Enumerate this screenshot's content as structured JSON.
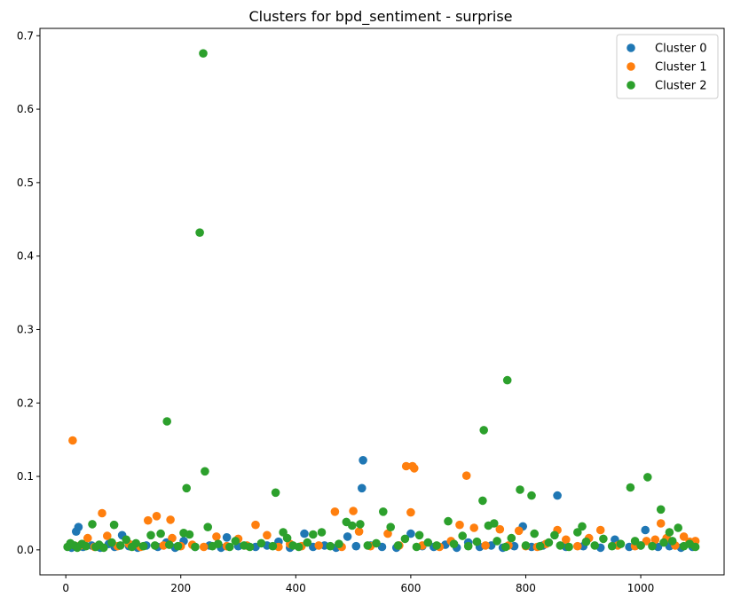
{
  "chart_data": {
    "type": "scatter",
    "title": "Clusters for bpd_sentiment - surprise",
    "xlabel": "",
    "ylabel": "",
    "xlim": [
      -45,
      1145
    ],
    "ylim": [
      -0.034,
      0.71
    ],
    "xticks": [
      0,
      200,
      400,
      600,
      800,
      1000
    ],
    "yticks": [
      0.0,
      0.1,
      0.2,
      0.3,
      0.4,
      0.5,
      0.6,
      0.7
    ],
    "ytick_labels": [
      "0.0",
      "0.1",
      "0.2",
      "0.3",
      "0.4",
      "0.5",
      "0.6",
      "0.7"
    ],
    "grid": false,
    "legend_position": "top-right",
    "series": [
      {
        "name": "Cluster 0",
        "color": "#1f77b4",
        "points": [
          [
            10,
            0.003
          ],
          [
            18,
            0.025
          ],
          [
            22,
            0.031
          ],
          [
            30,
            0.004
          ],
          [
            45,
            0.006
          ],
          [
            60,
            0.003
          ],
          [
            75,
            0.008
          ],
          [
            85,
            0.004
          ],
          [
            98,
            0.02
          ],
          [
            110,
            0.005
          ],
          [
            125,
            0.003
          ],
          [
            140,
            0.006
          ],
          [
            160,
            0.004
          ],
          [
            175,
            0.01
          ],
          [
            190,
            0.003
          ],
          [
            205,
            0.012
          ],
          [
            225,
            0.004
          ],
          [
            250,
            0.006
          ],
          [
            270,
            0.003
          ],
          [
            280,
            0.017
          ],
          [
            300,
            0.005
          ],
          [
            330,
            0.004
          ],
          [
            350,
            0.006
          ],
          [
            370,
            0.011
          ],
          [
            390,
            0.003
          ],
          [
            415,
            0.022
          ],
          [
            430,
            0.004
          ],
          [
            450,
            0.006
          ],
          [
            470,
            0.003
          ],
          [
            490,
            0.018
          ],
          [
            505,
            0.005
          ],
          [
            515,
            0.084
          ],
          [
            517,
            0.122
          ],
          [
            530,
            0.006
          ],
          [
            550,
            0.004
          ],
          [
            575,
            0.003
          ],
          [
            600,
            0.022
          ],
          [
            620,
            0.005
          ],
          [
            640,
            0.004
          ],
          [
            660,
            0.007
          ],
          [
            680,
            0.003
          ],
          [
            700,
            0.01
          ],
          [
            720,
            0.004
          ],
          [
            740,
            0.006
          ],
          [
            760,
            0.003
          ],
          [
            780,
            0.005
          ],
          [
            795,
            0.032
          ],
          [
            810,
            0.004
          ],
          [
            830,
            0.006
          ],
          [
            855,
            0.074
          ],
          [
            870,
            0.004
          ],
          [
            900,
            0.005
          ],
          [
            930,
            0.003
          ],
          [
            955,
            0.014
          ],
          [
            980,
            0.004
          ],
          [
            1000,
            0.006
          ],
          [
            1008,
            0.027
          ],
          [
            1030,
            0.004
          ],
          [
            1050,
            0.005
          ],
          [
            1070,
            0.003
          ],
          [
            1090,
            0.004
          ]
        ]
      },
      {
        "name": "Cluster 1",
        "color": "#ff7f0e",
        "points": [
          [
            12,
            0.149
          ],
          [
            25,
            0.006
          ],
          [
            38,
            0.016
          ],
          [
            50,
            0.004
          ],
          [
            63,
            0.05
          ],
          [
            72,
            0.019
          ],
          [
            90,
            0.005
          ],
          [
            110,
            0.008
          ],
          [
            130,
            0.004
          ],
          [
            143,
            0.04
          ],
          [
            158,
            0.046
          ],
          [
            170,
            0.006
          ],
          [
            182,
            0.041
          ],
          [
            185,
            0.016
          ],
          [
            200,
            0.005
          ],
          [
            220,
            0.007
          ],
          [
            240,
            0.004
          ],
          [
            262,
            0.018
          ],
          [
            280,
            0.005
          ],
          [
            300,
            0.015
          ],
          [
            315,
            0.006
          ],
          [
            330,
            0.034
          ],
          [
            350,
            0.02
          ],
          [
            370,
            0.004
          ],
          [
            390,
            0.008
          ],
          [
            410,
            0.005
          ],
          [
            440,
            0.006
          ],
          [
            468,
            0.052
          ],
          [
            480,
            0.004
          ],
          [
            500,
            0.053
          ],
          [
            510,
            0.025
          ],
          [
            530,
            0.005
          ],
          [
            560,
            0.022
          ],
          [
            580,
            0.006
          ],
          [
            592,
            0.114
          ],
          [
            600,
            0.051
          ],
          [
            603,
            0.114
          ],
          [
            606,
            0.111
          ],
          [
            620,
            0.006
          ],
          [
            650,
            0.004
          ],
          [
            670,
            0.012
          ],
          [
            685,
            0.034
          ],
          [
            697,
            0.101
          ],
          [
            710,
            0.03
          ],
          [
            730,
            0.006
          ],
          [
            755,
            0.028
          ],
          [
            770,
            0.006
          ],
          [
            788,
            0.026
          ],
          [
            800,
            0.005
          ],
          [
            820,
            0.004
          ],
          [
            835,
            0.008
          ],
          [
            855,
            0.027
          ],
          [
            870,
            0.014
          ],
          [
            890,
            0.005
          ],
          [
            910,
            0.016
          ],
          [
            930,
            0.027
          ],
          [
            960,
            0.006
          ],
          [
            990,
            0.005
          ],
          [
            1010,
            0.012
          ],
          [
            1025,
            0.014
          ],
          [
            1035,
            0.036
          ],
          [
            1045,
            0.016
          ],
          [
            1060,
            0.006
          ],
          [
            1075,
            0.018
          ],
          [
            1085,
            0.011
          ],
          [
            1095,
            0.012
          ]
        ]
      },
      {
        "name": "Cluster 2",
        "color": "#2ca02c",
        "points": [
          [
            3,
            0.004
          ],
          [
            8,
            0.009
          ],
          [
            15,
            0.006
          ],
          [
            20,
            0.003
          ],
          [
            28,
            0.008
          ],
          [
            35,
            0.005
          ],
          [
            46,
            0.035
          ],
          [
            52,
            0.004
          ],
          [
            58,
            0.007
          ],
          [
            66,
            0.003
          ],
          [
            80,
            0.01
          ],
          [
            84,
            0.034
          ],
          [
            95,
            0.006
          ],
          [
            105,
            0.014
          ],
          [
            115,
            0.004
          ],
          [
            122,
            0.009
          ],
          [
            135,
            0.005
          ],
          [
            148,
            0.02
          ],
          [
            155,
            0.006
          ],
          [
            165,
            0.022
          ],
          [
            176,
            0.175
          ],
          [
            180,
            0.007
          ],
          [
            195,
            0.005
          ],
          [
            205,
            0.023
          ],
          [
            210,
            0.084
          ],
          [
            215,
            0.021
          ],
          [
            225,
            0.004
          ],
          [
            233,
            0.432
          ],
          [
            239,
            0.676
          ],
          [
            242,
            0.107
          ],
          [
            247,
            0.031
          ],
          [
            255,
            0.005
          ],
          [
            265,
            0.008
          ],
          [
            285,
            0.004
          ],
          [
            295,
            0.012
          ],
          [
            310,
            0.006
          ],
          [
            320,
            0.004
          ],
          [
            340,
            0.009
          ],
          [
            360,
            0.005
          ],
          [
            365,
            0.078
          ],
          [
            378,
            0.024
          ],
          [
            385,
            0.016
          ],
          [
            395,
            0.006
          ],
          [
            405,
            0.004
          ],
          [
            420,
            0.01
          ],
          [
            430,
            0.021
          ],
          [
            445,
            0.024
          ],
          [
            460,
            0.005
          ],
          [
            475,
            0.008
          ],
          [
            488,
            0.038
          ],
          [
            498,
            0.033
          ],
          [
            512,
            0.035
          ],
          [
            525,
            0.006
          ],
          [
            540,
            0.009
          ],
          [
            552,
            0.052
          ],
          [
            565,
            0.031
          ],
          [
            578,
            0.006
          ],
          [
            590,
            0.015
          ],
          [
            610,
            0.004
          ],
          [
            615,
            0.02
          ],
          [
            630,
            0.01
          ],
          [
            645,
            0.006
          ],
          [
            665,
            0.039
          ],
          [
            675,
            0.008
          ],
          [
            690,
            0.019
          ],
          [
            700,
            0.005
          ],
          [
            715,
            0.011
          ],
          [
            725,
            0.067
          ],
          [
            727,
            0.163
          ],
          [
            735,
            0.033
          ],
          [
            745,
            0.036
          ],
          [
            750,
            0.012
          ],
          [
            765,
            0.004
          ],
          [
            768,
            0.231
          ],
          [
            775,
            0.016
          ],
          [
            790,
            0.082
          ],
          [
            800,
            0.006
          ],
          [
            810,
            0.074
          ],
          [
            815,
            0.022
          ],
          [
            825,
            0.005
          ],
          [
            840,
            0.01
          ],
          [
            850,
            0.02
          ],
          [
            860,
            0.006
          ],
          [
            875,
            0.004
          ],
          [
            890,
            0.024
          ],
          [
            898,
            0.032
          ],
          [
            905,
            0.011
          ],
          [
            920,
            0.006
          ],
          [
            935,
            0.015
          ],
          [
            950,
            0.005
          ],
          [
            965,
            0.008
          ],
          [
            982,
            0.085
          ],
          [
            990,
            0.012
          ],
          [
            1000,
            0.006
          ],
          [
            1012,
            0.099
          ],
          [
            1020,
            0.005
          ],
          [
            1035,
            0.055
          ],
          [
            1040,
            0.01
          ],
          [
            1050,
            0.024
          ],
          [
            1055,
            0.012
          ],
          [
            1065,
            0.03
          ],
          [
            1075,
            0.005
          ],
          [
            1085,
            0.008
          ],
          [
            1095,
            0.004
          ]
        ]
      }
    ]
  }
}
